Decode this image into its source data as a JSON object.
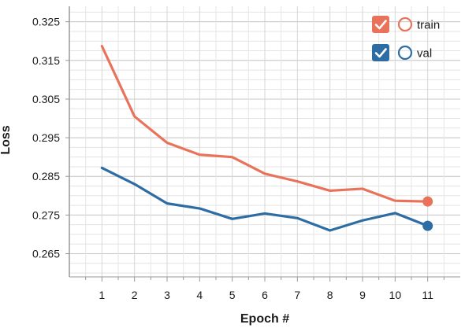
{
  "chart_data": {
    "type": "line",
    "xlabel": "Epoch #",
    "ylabel": "Loss",
    "x": [
      1,
      2,
      3,
      4,
      5,
      6,
      7,
      8,
      9,
      10,
      11
    ],
    "xlim": [
      0,
      12
    ],
    "ylim": [
      0.259,
      0.329
    ],
    "xticks": [
      "1",
      "2",
      "3",
      "4",
      "5",
      "6",
      "7",
      "8",
      "9",
      "10",
      "11"
    ],
    "yticks": [
      {
        "value": 0.265,
        "label": "0.265"
      },
      {
        "value": 0.275,
        "label": "0.275"
      },
      {
        "value": 0.285,
        "label": "0.285"
      },
      {
        "value": 0.295,
        "label": "0.295"
      },
      {
        "value": 0.305,
        "label": "0.305"
      },
      {
        "value": 0.315,
        "label": "0.315"
      },
      {
        "value": 0.325,
        "label": "0.325"
      }
    ],
    "grid": true,
    "legend_position": "top-right",
    "series": [
      {
        "name": "train",
        "color": "#e8735a",
        "checked": true,
        "values": [
          0.3187,
          0.3005,
          0.2937,
          0.2906,
          0.29,
          0.2857,
          0.2837,
          0.2813,
          0.2818,
          0.2787,
          0.2785
        ]
      },
      {
        "name": "val",
        "color": "#2e6da4",
        "checked": true,
        "values": [
          0.2872,
          0.283,
          0.278,
          0.2767,
          0.274,
          0.2754,
          0.2742,
          0.271,
          0.2736,
          0.2755,
          0.2722
        ]
      }
    ]
  }
}
